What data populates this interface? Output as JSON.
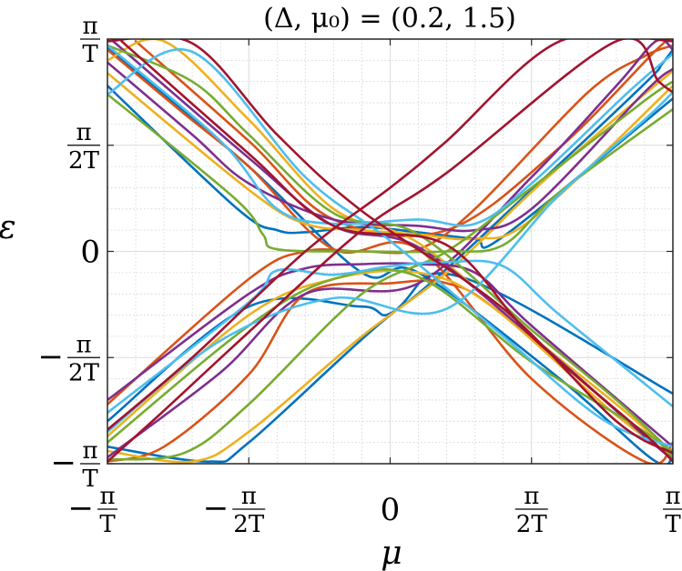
{
  "chart_data": {
    "type": "line",
    "title": "(Δ, μ₀) = (0.2, 1.5)",
    "xlabel": "μ",
    "ylabel": "ε",
    "xlim": [
      -1,
      1
    ],
    "ylim": [
      -1,
      1
    ],
    "axis_units": "π/T",
    "grid": true,
    "minor_grid": true,
    "legend": "none",
    "x_ticks": [
      {
        "value": -1,
        "sign": "−",
        "num": "π",
        "den": "T"
      },
      {
        "value": -0.5,
        "sign": "−",
        "num": "π",
        "den": "2T"
      },
      {
        "value": 0,
        "label": "0"
      },
      {
        "value": 0.5,
        "num": "π",
        "den": "2T"
      },
      {
        "value": 1,
        "num": "π",
        "den": "T"
      }
    ],
    "y_ticks": [
      {
        "value": 1,
        "num": "π",
        "den": "T"
      },
      {
        "value": 0.5,
        "num": "π",
        "den": "2T"
      },
      {
        "value": 0,
        "label": "0"
      },
      {
        "value": -0.5,
        "sign": "−",
        "num": "π",
        "den": "2T"
      },
      {
        "value": -1,
        "sign": "−",
        "num": "π",
        "den": "T"
      }
    ],
    "series_colors": [
      "#0072BD",
      "#D95319",
      "#EDB120",
      "#7E2F8E",
      "#77AC30",
      "#4DBEEE",
      "#A2142F"
    ],
    "series": [
      {
        "color": "#0072BD",
        "points": [
          [
            -1,
            0.78
          ],
          [
            -0.54,
            0.2
          ],
          [
            -0.4,
            0.1
          ],
          [
            -0.3,
            0.09
          ],
          [
            -0.1,
            0.115
          ],
          [
            0.1,
            0.09
          ],
          [
            0.3,
            0.06
          ],
          [
            0.4,
            0.07
          ],
          [
            1,
            0.72
          ]
        ]
      },
      {
        "color": "#0072BD",
        "points": [
          [
            -1,
            -0.8
          ],
          [
            -0.5,
            -0.26
          ],
          [
            -0.1,
            -0.26
          ],
          [
            0.04,
            -0.26
          ],
          [
            0.5,
            0.29
          ],
          [
            0.9,
            0.79
          ],
          [
            0.96,
            0.88
          ],
          [
            1,
            0.95
          ]
        ]
      },
      {
        "color": "#0072BD",
        "points": [
          [
            -1,
            -0.92
          ],
          [
            -0.64,
            -0.99
          ],
          [
            -0.5,
            -0.9
          ],
          [
            0.0,
            -0.3
          ],
          [
            0.25,
            -0.12
          ],
          [
            1,
            -0.67
          ]
        ]
      },
      {
        "color": "#0072BD",
        "points": [
          [
            -1,
            0.96
          ],
          [
            -0.5,
            0.4
          ],
          [
            -0.1,
            -0.1
          ],
          [
            0.1,
            -0.1
          ],
          [
            0.6,
            -0.6
          ],
          [
            0.94,
            -0.99
          ],
          [
            1,
            -0.93
          ]
        ]
      },
      {
        "color": "#D95319",
        "points": [
          [
            -1,
            -0.72
          ],
          [
            -0.5,
            -0.13
          ],
          [
            -0.3,
            0.0
          ],
          [
            -0.1,
            0.0
          ],
          [
            0.1,
            0.01
          ],
          [
            0.3,
            0.2
          ],
          [
            0.7,
            0.75
          ],
          [
            0.9,
            0.92
          ],
          [
            1,
            0.97
          ]
        ]
      },
      {
        "color": "#D95319",
        "points": [
          [
            -1,
            0.95
          ],
          [
            -0.73,
            0.65
          ],
          [
            -0.5,
            0.4
          ],
          [
            -0.2,
            0.01
          ],
          [
            0.1,
            0.01
          ],
          [
            0.5,
            -0.6
          ],
          [
            0.9,
            -0.99
          ],
          [
            1,
            -0.9
          ]
        ]
      },
      {
        "color": "#D95319",
        "points": [
          [
            -1,
            -0.99
          ],
          [
            -0.8,
            -0.92
          ],
          [
            -0.5,
            -0.58
          ],
          [
            -0.3,
            -0.2
          ],
          [
            0.0,
            -0.15
          ],
          [
            0.2,
            -0.15
          ],
          [
            0.4,
            -0.3
          ],
          [
            1,
            -0.98
          ]
        ]
      },
      {
        "color": "#D95319",
        "points": [
          [
            -0.9,
            0.99
          ],
          [
            -0.5,
            0.52
          ],
          [
            -0.2,
            0.15
          ],
          [
            0.2,
            0.1
          ],
          [
            0.6,
            0.49
          ],
          [
            0.95,
            0.96
          ],
          [
            1,
            0.99
          ]
        ]
      },
      {
        "color": "#EDB120",
        "points": [
          [
            -1,
            0.84
          ],
          [
            -0.5,
            0.29
          ],
          [
            -0.3,
            0.13
          ],
          [
            -0.1,
            0.1
          ],
          [
            0.1,
            0.08
          ],
          [
            0.3,
            0.06
          ],
          [
            0.5,
            0.15
          ],
          [
            1,
            0.78
          ]
        ]
      },
      {
        "color": "#EDB120",
        "points": [
          [
            -1,
            -0.87
          ],
          [
            -0.5,
            -0.3
          ],
          [
            -0.2,
            -0.13
          ],
          [
            0.1,
            -0.1
          ],
          [
            0.35,
            -0.25
          ],
          [
            0.78,
            -0.75
          ],
          [
            1,
            -0.97
          ]
        ]
      },
      {
        "color": "#EDB120",
        "points": [
          [
            -1,
            -0.94
          ],
          [
            -0.7,
            -0.99
          ],
          [
            -0.5,
            -0.85
          ],
          [
            -0.1,
            -0.4
          ],
          [
            0.2,
            -0.1
          ],
          [
            0.5,
            0.28
          ],
          [
            0.8,
            0.63
          ],
          [
            1,
            0.85
          ]
        ]
      },
      {
        "color": "#EDB120",
        "points": [
          [
            -1,
            0.9
          ],
          [
            -0.8,
            0.99
          ],
          [
            -0.5,
            0.62
          ],
          [
            -0.2,
            0.2
          ],
          [
            0.1,
            0.04
          ],
          [
            0.5,
            -0.4
          ],
          [
            0.8,
            -0.72
          ],
          [
            1,
            -0.95
          ]
        ]
      },
      {
        "color": "#7E2F8E",
        "points": [
          [
            -1,
            0.89
          ],
          [
            -0.7,
            0.55
          ],
          [
            -0.5,
            0.32
          ],
          [
            -0.2,
            0.15
          ],
          [
            0.1,
            0.12
          ],
          [
            0.3,
            0.1
          ],
          [
            0.5,
            0.2
          ],
          [
            0.9,
            0.75
          ],
          [
            1,
            0.86
          ]
        ]
      },
      {
        "color": "#7E2F8E",
        "points": [
          [
            -1,
            -0.7
          ],
          [
            -0.5,
            -0.2
          ],
          [
            -0.3,
            -0.08
          ],
          [
            -0.1,
            -0.06
          ],
          [
            0.1,
            -0.06
          ],
          [
            0.3,
            -0.1
          ],
          [
            0.5,
            -0.35
          ],
          [
            1,
            -0.92
          ]
        ]
      },
      {
        "color": "#7E2F8E",
        "points": [
          [
            -1,
            -0.97
          ],
          [
            -0.6,
            -0.57
          ],
          [
            -0.3,
            -0.2
          ],
          [
            0.1,
            -0.15
          ],
          [
            0.5,
            0.35
          ],
          [
            0.8,
            0.78
          ],
          [
            0.94,
            0.99
          ],
          [
            1,
            0.95
          ]
        ]
      },
      {
        "color": "#7E2F8E",
        "points": [
          [
            -0.98,
            0.99
          ],
          [
            -0.5,
            0.44
          ],
          [
            -0.2,
            0.12
          ],
          [
            0.1,
            0.02
          ],
          [
            0.5,
            -0.4
          ],
          [
            0.9,
            -0.87
          ],
          [
            1,
            -0.98
          ]
        ]
      },
      {
        "color": "#77AC30",
        "points": [
          [
            -1,
            0.74
          ],
          [
            -0.55,
            0.25
          ],
          [
            -0.45,
            0.08
          ],
          [
            -0.4,
            0.01
          ],
          [
            -0.1,
            0.0
          ],
          [
            0.2,
            0.0
          ],
          [
            0.4,
            0.03
          ],
          [
            0.6,
            0.28
          ],
          [
            1,
            0.67
          ]
        ]
      },
      {
        "color": "#77AC30",
        "points": [
          [
            -1,
            -0.9
          ],
          [
            -0.5,
            -0.35
          ],
          [
            -0.2,
            -0.13
          ],
          [
            0.1,
            -0.12
          ],
          [
            0.5,
            -0.52
          ],
          [
            0.9,
            -0.85
          ],
          [
            1,
            -0.97
          ]
        ]
      },
      {
        "color": "#77AC30",
        "points": [
          [
            -1,
            -0.98
          ],
          [
            -0.73,
            -0.95
          ],
          [
            -0.5,
            -0.72
          ],
          [
            -0.1,
            -0.2
          ],
          [
            0.2,
            0.0
          ],
          [
            0.5,
            0.3
          ],
          [
            0.9,
            0.71
          ],
          [
            1,
            0.8
          ]
        ]
      },
      {
        "color": "#77AC30",
        "points": [
          [
            -1,
            0.97
          ],
          [
            -0.7,
            0.8
          ],
          [
            -0.5,
            0.55
          ],
          [
            -0.2,
            0.18
          ],
          [
            0.1,
            0.08
          ],
          [
            0.5,
            -0.37
          ],
          [
            0.8,
            -0.7
          ],
          [
            1,
            -0.95
          ]
        ]
      },
      {
        "color": "#4DBEEE",
        "points": [
          [
            -1,
            0.97
          ],
          [
            -0.6,
            0.52
          ],
          [
            -0.4,
            0.2
          ],
          [
            -0.2,
            0.13
          ],
          [
            0.1,
            0.15
          ],
          [
            0.3,
            0.13
          ],
          [
            0.5,
            0.32
          ],
          [
            0.85,
            0.76
          ],
          [
            1,
            0.93
          ]
        ]
      },
      {
        "color": "#4DBEEE",
        "points": [
          [
            -1,
            -0.76
          ],
          [
            -0.5,
            -0.24
          ],
          [
            -0.4,
            -0.09
          ],
          [
            -0.2,
            -0.11
          ],
          [
            0.0,
            -0.07
          ],
          [
            0.2,
            -0.05
          ],
          [
            0.4,
            -0.07
          ],
          [
            0.6,
            -0.3
          ],
          [
            1,
            -0.73
          ]
        ]
      },
      {
        "color": "#4DBEEE",
        "points": [
          [
            -1,
            0.74
          ],
          [
            -0.7,
            0.94
          ],
          [
            -0.3,
            0.35
          ],
          [
            0.0,
            0.05
          ],
          [
            0.4,
            -0.4
          ],
          [
            0.75,
            -0.79
          ],
          [
            1,
            -0.92
          ]
        ]
      },
      {
        "color": "#4DBEEE",
        "points": [
          [
            -1,
            -0.85
          ],
          [
            -0.6,
            -0.42
          ],
          [
            -0.2,
            -0.22
          ],
          [
            0.2,
            -0.27
          ],
          [
            0.6,
            0.27
          ],
          [
            0.9,
            0.62
          ],
          [
            1,
            0.75
          ]
        ]
      },
      {
        "color": "#A2142F",
        "points": [
          [
            -1,
            -0.84
          ],
          [
            -0.7,
            -0.5
          ],
          [
            -0.3,
            0.0
          ],
          [
            0.0,
            0.3
          ],
          [
            0.2,
            0.52
          ],
          [
            0.6,
            0.99
          ],
          [
            1,
            0.99
          ]
        ]
      },
      {
        "color": "#A2142F",
        "points": [
          [
            -0.95,
            0.99
          ],
          [
            -0.5,
            0.46
          ],
          [
            -0.2,
            0.12
          ],
          [
            0.2,
            0.03
          ],
          [
            0.5,
            -0.4
          ],
          [
            0.9,
            -0.86
          ],
          [
            1,
            -0.99
          ]
        ]
      },
      {
        "color": "#A2142F",
        "points": [
          [
            -1,
            -0.99
          ],
          [
            -0.8,
            -0.75
          ],
          [
            -0.5,
            -0.38
          ],
          [
            -0.1,
            0.1
          ],
          [
            0.2,
            0.37
          ],
          [
            0.8,
            0.99
          ],
          [
            0.95,
            0.8
          ],
          [
            1,
            0.75
          ]
        ]
      },
      {
        "color": "#A2142F",
        "points": [
          [
            -1,
            0.99
          ],
          [
            -0.7,
            0.98
          ],
          [
            -0.4,
            0.55
          ],
          [
            -0.1,
            0.19
          ],
          [
            0.4,
            -0.27
          ],
          [
            0.8,
            -0.8
          ],
          [
            1,
            -0.95
          ]
        ]
      }
    ]
  }
}
